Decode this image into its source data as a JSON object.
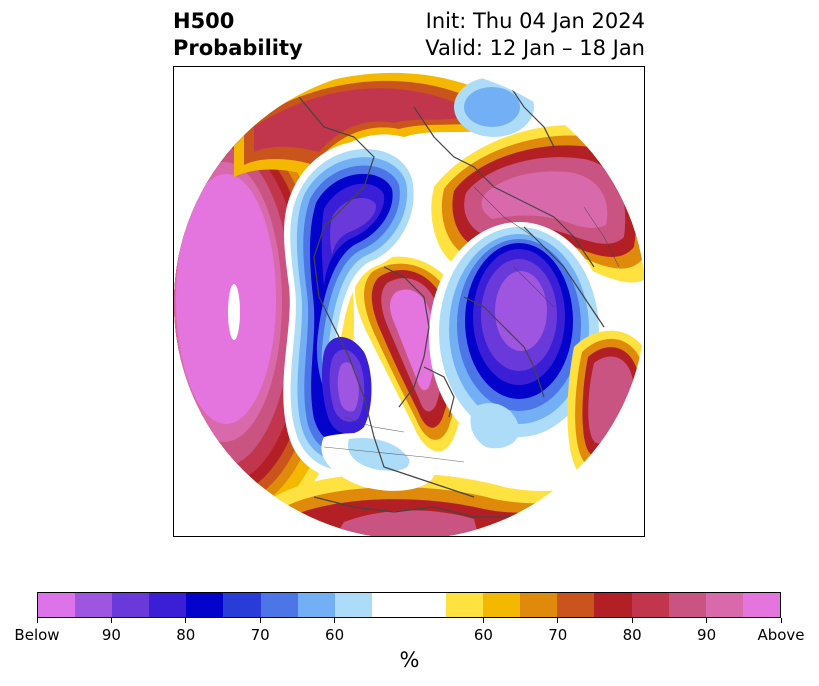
{
  "header": {
    "title_line1": "H500",
    "title_line2": "Probability",
    "init": "Init: Thu 04 Jan 2024",
    "valid": "Valid: 12 Jan – 18 Jan"
  },
  "colorbar": {
    "colors": [
      "#dc73e8",
      "#9e55e0",
      "#6a39d9",
      "#3a1fd7",
      "#0303cc",
      "#2a3cd8",
      "#4c76e8",
      "#73aff5",
      "#addcf9",
      "#ffffff",
      "#ffffff",
      "#ffe240",
      "#f5b800",
      "#e08a0c",
      "#c9541c",
      "#b22025",
      "#c2364d",
      "#c95482",
      "#d86aab",
      "#e474de"
    ],
    "tick_labels": [
      "Below",
      "90",
      "80",
      "70",
      "60",
      "60",
      "70",
      "80",
      "90",
      "Above"
    ],
    "units": "%"
  }
}
